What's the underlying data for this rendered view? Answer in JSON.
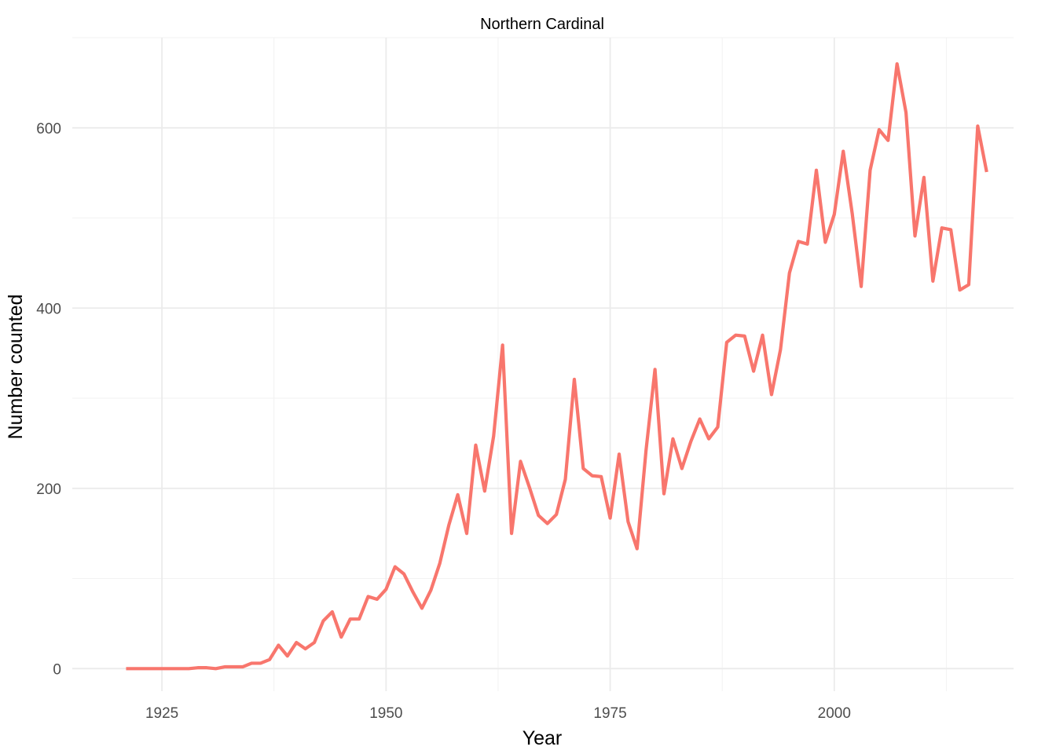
{
  "chart_data": {
    "type": "line",
    "title": "Northern Cardinal",
    "xlabel": "Year",
    "ylabel": "Number counted",
    "xlim": [
      1915,
      2020
    ],
    "ylim": [
      -25,
      700
    ],
    "xticks": [
      1925,
      1950,
      1975,
      2000
    ],
    "xtick_labels": [
      "1925",
      "1950",
      "1975",
      "2000"
    ],
    "yticks": [
      0,
      200,
      400,
      600
    ],
    "ytick_labels": [
      "0",
      "200",
      "400",
      "600"
    ],
    "grid": true,
    "legend": "none",
    "colors": {
      "line": "#f8766d",
      "grid_major": "#ebebeb",
      "grid_minor": "#f2f2f2"
    },
    "series": [
      {
        "x": [
          1921,
          1922,
          1923,
          1924,
          1925,
          1926,
          1927,
          1928,
          1929,
          1930,
          1931,
          1932,
          1933,
          1934,
          1935,
          1936,
          1937,
          1938,
          1939,
          1940,
          1941,
          1942,
          1943,
          1944,
          1945,
          1946,
          1947,
          1948,
          1949,
          1950,
          1951,
          1952,
          1953,
          1954,
          1955,
          1956,
          1957,
          1958,
          1959,
          1960,
          1961,
          1962,
          1963,
          1964,
          1965,
          1966,
          1967,
          1968,
          1969,
          1970,
          1971,
          1972,
          1973,
          1974,
          1975,
          1976,
          1977,
          1978,
          1979,
          1980,
          1981,
          1982,
          1983,
          1984,
          1985,
          1986,
          1987,
          1988,
          1989,
          1990,
          1991,
          1992,
          1993,
          1994,
          1995,
          1996,
          1997,
          1998,
          1999,
          2000,
          2001,
          2002,
          2003,
          2004,
          2005,
          2006,
          2007,
          2008,
          2009,
          2010,
          2011,
          2012,
          2013,
          2014,
          2015,
          2016,
          2017
        ],
        "y": [
          0,
          0,
          0,
          0,
          0,
          0,
          0,
          0,
          1,
          1,
          0,
          2,
          2,
          2,
          6,
          6,
          10,
          26,
          14,
          29,
          22,
          29,
          53,
          63,
          35,
          55,
          55,
          80,
          77,
          88,
          113,
          105,
          85,
          67,
          87,
          117,
          159,
          193,
          150,
          248,
          197,
          258,
          359,
          150,
          230,
          201,
          170,
          161,
          171,
          210,
          321,
          222,
          214,
          213,
          167,
          238,
          163,
          133,
          242,
          332,
          194,
          255,
          222,
          252,
          277,
          255,
          268,
          362,
          370,
          369,
          330,
          370,
          304,
          354,
          439,
          474,
          471,
          553,
          473,
          504,
          574,
          505,
          424,
          553,
          598,
          586,
          671,
          617,
          480,
          545,
          430,
          489,
          487,
          420,
          426,
          602,
          551
        ]
      }
    ]
  }
}
